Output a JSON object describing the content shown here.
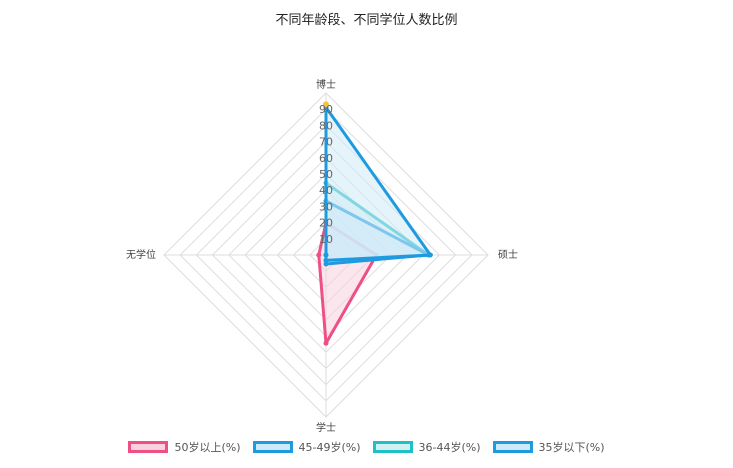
{
  "chart_data": {
    "type": "radar",
    "title": "不同年龄段、不同学位人数比例",
    "axes": [
      "博士",
      "硕士",
      "学士",
      "无学位"
    ],
    "ticks": [
      "0",
      "10",
      "20",
      "30",
      "40",
      "50",
      "60",
      "70",
      "80",
      "90"
    ],
    "rlim": [
      0,
      90
    ],
    "grid": true,
    "legend_position": "bottom",
    "series": [
      {
        "name": "50岁以上(%)",
        "values": [
          18,
          28,
          49,
          4
        ],
        "stroke": "#ee4f86",
        "fill": "#f9d1e0"
      },
      {
        "name": "45-49岁(%)",
        "values": [
          82,
          58,
          3,
          0
        ],
        "stroke": "#1e9be0",
        "fill": "#cfe9f8"
      },
      {
        "name": "36-44岁(%)",
        "values": [
          40,
          57,
          3,
          0
        ],
        "stroke": "#1fc1c6",
        "fill": "#d2f0f1"
      },
      {
        "name": "35岁以下(%)",
        "values": [
          30,
          57,
          5,
          0
        ],
        "stroke": "#1e9be0",
        "fill": "#cfe9f8"
      }
    ]
  }
}
